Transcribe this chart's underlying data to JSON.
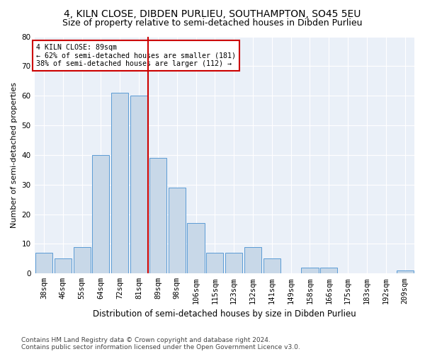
{
  "title": "4, KILN CLOSE, DIBDEN PURLIEU, SOUTHAMPTON, SO45 5EU",
  "subtitle": "Size of property relative to semi-detached houses in Dibden Purlieu",
  "xlabel": "Distribution of semi-detached houses by size in Dibden Purlieu",
  "ylabel": "Number of semi-detached properties",
  "categories": [
    "38sqm",
    "46sqm",
    "55sqm",
    "64sqm",
    "72sqm",
    "81sqm",
    "89sqm",
    "98sqm",
    "106sqm",
    "115sqm",
    "123sqm",
    "132sqm",
    "141sqm",
    "149sqm",
    "158sqm",
    "166sqm",
    "175sqm",
    "183sqm",
    "192sqm",
    "209sqm"
  ],
  "values": [
    7,
    5,
    9,
    40,
    61,
    60,
    39,
    29,
    17,
    7,
    7,
    9,
    5,
    0,
    2,
    2,
    0,
    0,
    0,
    1
  ],
  "bar_color": "#c8d8e8",
  "bar_edge_color": "#5b9bd5",
  "vline_color": "#cc0000",
  "annotation_text": "4 KILN CLOSE: 89sqm\n← 62% of semi-detached houses are smaller (181)\n38% of semi-detached houses are larger (112) →",
  "annotation_box_color": "#ffffff",
  "annotation_box_edge": "#cc0000",
  "footer": "Contains HM Land Registry data © Crown copyright and database right 2024.\nContains public sector information licensed under the Open Government Licence v3.0.",
  "ylim": [
    0,
    80
  ],
  "yticks": [
    0,
    10,
    20,
    30,
    40,
    50,
    60,
    70,
    80
  ],
  "plot_bg_color": "#eaf0f8",
  "title_fontsize": 10,
  "subtitle_fontsize": 9,
  "xlabel_fontsize": 8.5,
  "ylabel_fontsize": 8,
  "tick_fontsize": 7.5,
  "footer_fontsize": 6.5
}
